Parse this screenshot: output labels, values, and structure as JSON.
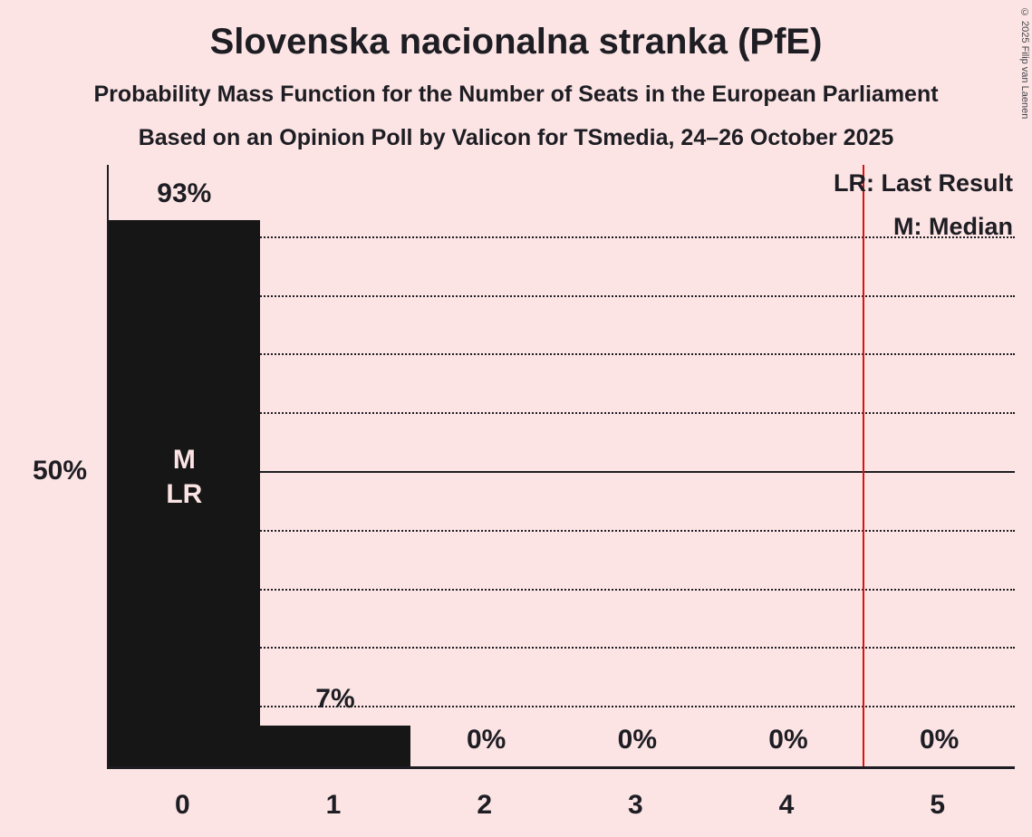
{
  "title": "Slovenska nacionalna stranka (PfE)",
  "subtitle1": "Probability Mass Function for the Number of Seats in the European Parliament",
  "subtitle2": "Based on an Opinion Poll by Valicon for TSmedia, 24–26 October 2025",
  "copyright": "© 2025 Filip van Laenen",
  "legend": {
    "lr": "LR: Last Result",
    "m": "M: Median"
  },
  "colors": {
    "background": "#fce4e4",
    "bar": "#161616",
    "text": "#1d1d23",
    "bar_annotation_text": "#fce4e4",
    "last_result_line": "#dd1111"
  },
  "chart_data": {
    "type": "bar",
    "title": "Slovenska nacionalna stranka (PfE)",
    "xlabel": "",
    "ylabel": "",
    "categories": [
      "0",
      "1",
      "2",
      "3",
      "4",
      "5"
    ],
    "values": [
      93,
      7,
      0,
      0,
      0,
      0
    ],
    "value_labels": [
      "93%",
      "7%",
      "0%",
      "0%",
      "0%",
      "0%"
    ],
    "ylim": [
      0,
      100
    ],
    "y_tick_label": "50%",
    "y_tick_pct": 50,
    "solid_gridline_pct": 50,
    "gridlines_pct": [
      10,
      20,
      30,
      40,
      60,
      70,
      80,
      90
    ],
    "grid": "dotted horizontal every 10%",
    "median_bar_index": 0,
    "last_result_bar_index": 0,
    "bar_annotations": [
      "M",
      "LR"
    ],
    "last_result_line_x": 4.5,
    "legend_position": "top-right"
  }
}
